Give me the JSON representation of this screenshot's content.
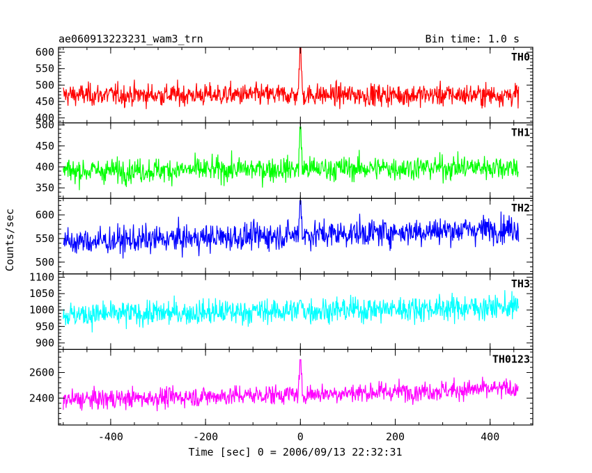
{
  "chart_data": {
    "type": "line",
    "title": "ae060913223231_wam3_trn",
    "subtitle": "Bin time: 1.0 s",
    "xlabel": "Time [sec] 0 = 2006/09/13 22:32:31",
    "ylabel": "Counts/sec",
    "xlim": [
      -510,
      490
    ],
    "xticks": [
      "-400",
      "-200",
      "0",
      "200",
      "400"
    ],
    "xtick_values": [
      -400,
      -200,
      0,
      200,
      400
    ],
    "x_start": -500,
    "x_end": 460,
    "x_step": 1.0,
    "grid": false,
    "legend": "none",
    "panels": [
      {
        "label": "TH0",
        "color": "#ff0000",
        "ylim": [
          385,
          615
        ],
        "yticks": [
          "400",
          "450",
          "500",
          "550",
          "600"
        ],
        "ytick_values": [
          400,
          450,
          500,
          550,
          600
        ],
        "mean": 470,
        "noise": 28,
        "trend": 0,
        "spike_peak": 615
      },
      {
        "label": "TH1",
        "color": "#00ff00",
        "ylim": [
          325,
          505
        ],
        "yticks": [
          "350",
          "400",
          "450",
          "500"
        ],
        "ytick_values": [
          350,
          400,
          450,
          500
        ],
        "mean": 390,
        "noise": 24,
        "trend": 10,
        "spike_peak": 495
      },
      {
        "label": "TH2",
        "color": "#0000ff",
        "ylim": [
          475,
          635
        ],
        "yticks": [
          "500",
          "550",
          "600"
        ],
        "ytick_values": [
          500,
          550,
          600
        ],
        "mean": 542,
        "noise": 24,
        "trend": 30,
        "spike_peak": 630
      },
      {
        "label": "TH3",
        "color": "#00ffff",
        "ylim": [
          880,
          1110
        ],
        "yticks": [
          "900",
          "950",
          "1000",
          "1050",
          "1100"
        ],
        "ytick_values": [
          900,
          950,
          1000,
          1050,
          1100
        ],
        "mean": 985,
        "noise": 32,
        "trend": 25,
        "spike_peak": 1030
      },
      {
        "label": "TH0123",
        "color": "#ff00ff",
        "ylim": [
          2190,
          2780
        ],
        "yticks": [
          "2400",
          "2600"
        ],
        "ytick_values": [
          2400,
          2600
        ],
        "mean": 2385,
        "noise": 65,
        "trend": 90,
        "spike_peak": 2700
      }
    ]
  }
}
